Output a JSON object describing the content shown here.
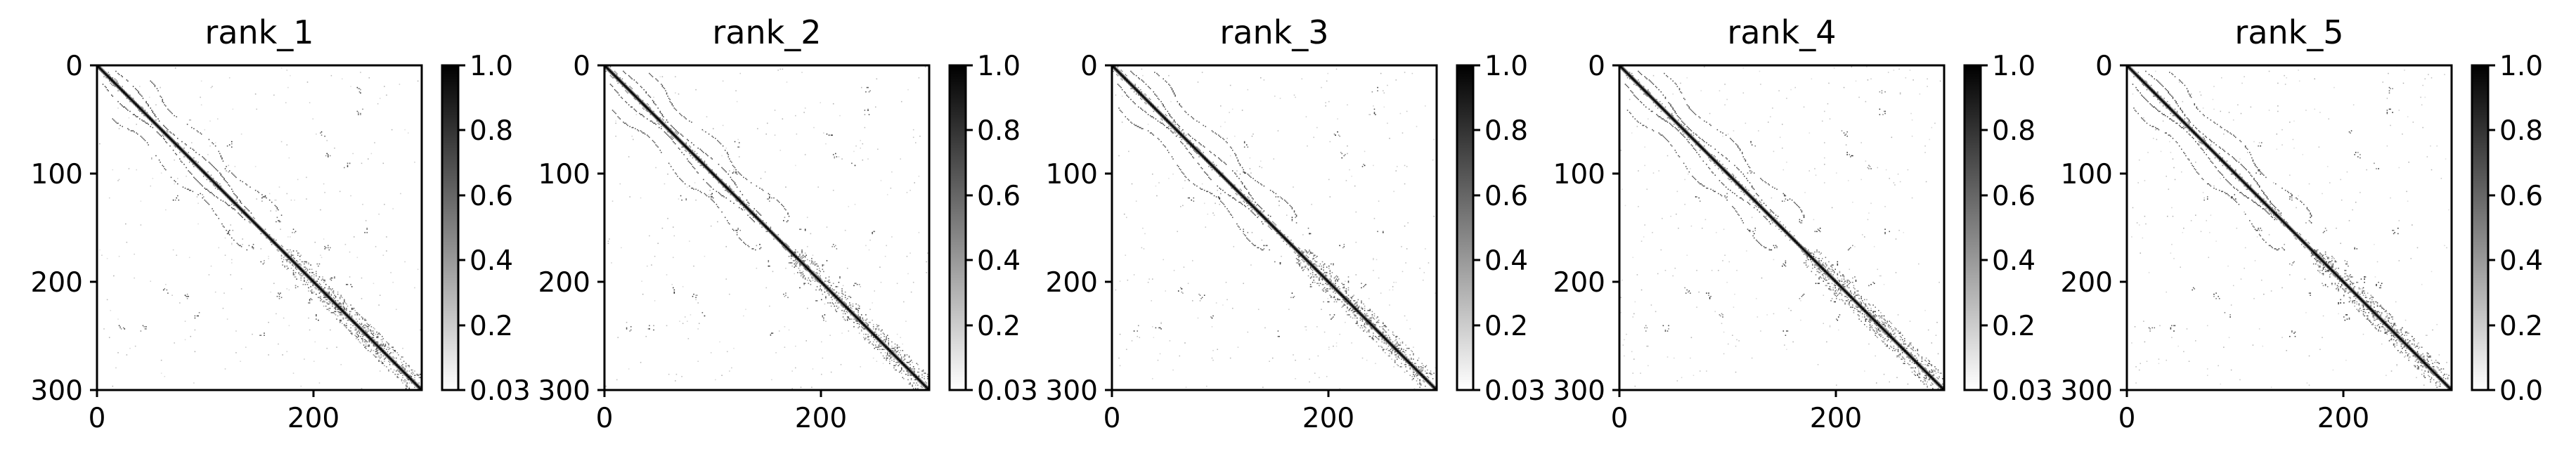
{
  "chart_data": [
    {
      "type": "heatmap",
      "title": "rank_1",
      "xlim": [
        0,
        300
      ],
      "ylim": [
        300,
        0
      ],
      "x_ticks": [
        0,
        200
      ],
      "y_ticks": [
        0,
        100,
        200,
        300
      ],
      "colorbar": {
        "colormap": "Greys",
        "min": 0,
        "max": 1.0,
        "ticks": [
          "0.03",
          "0.2",
          "0.4",
          "0.6",
          "0.8",
          "1.0"
        ]
      },
      "structure": "contact map: strong main diagonal with parallel off-diagonal bands and scattered contacts"
    },
    {
      "type": "heatmap",
      "title": "rank_2",
      "xlim": [
        0,
        300
      ],
      "ylim": [
        300,
        0
      ],
      "x_ticks": [
        0,
        200
      ],
      "y_ticks": [
        0,
        100,
        200,
        300
      ],
      "colorbar": {
        "colormap": "Greys",
        "min": 0,
        "max": 1.0,
        "ticks": [
          "0.03",
          "0.2",
          "0.4",
          "0.6",
          "0.8",
          "1.0"
        ]
      },
      "structure": "contact map: strong main diagonal with parallel off-diagonal bands and scattered contacts"
    },
    {
      "type": "heatmap",
      "title": "rank_3",
      "xlim": [
        0,
        300
      ],
      "ylim": [
        300,
        0
      ],
      "x_ticks": [
        0,
        200
      ],
      "y_ticks": [
        0,
        100,
        200,
        300
      ],
      "colorbar": {
        "colormap": "Greys",
        "min": 0,
        "max": 1.0,
        "ticks": [
          "0.03",
          "0.2",
          "0.4",
          "0.6",
          "0.8",
          "1.0"
        ]
      },
      "structure": "contact map: strong main diagonal with parallel off-diagonal bands and scattered contacts"
    },
    {
      "type": "heatmap",
      "title": "rank_4",
      "xlim": [
        0,
        300
      ],
      "ylim": [
        300,
        0
      ],
      "x_ticks": [
        0,
        200
      ],
      "y_ticks": [
        0,
        100,
        200,
        300
      ],
      "colorbar": {
        "colormap": "Greys",
        "min": 0,
        "max": 1.0,
        "ticks": [
          "0.03",
          "0.2",
          "0.4",
          "0.6",
          "0.8",
          "1.0"
        ]
      },
      "structure": "contact map: strong main diagonal with parallel off-diagonal bands and scattered contacts"
    },
    {
      "type": "heatmap",
      "title": "rank_5",
      "xlim": [
        0,
        300
      ],
      "ylim": [
        300,
        0
      ],
      "x_ticks": [
        0,
        200
      ],
      "y_ticks": [
        0,
        100,
        200,
        300
      ],
      "colorbar": {
        "colormap": "Greys",
        "min": 0,
        "max": 1.0,
        "ticks": [
          "0.0",
          "0.2",
          "0.4",
          "0.6",
          "0.8",
          "1.0"
        ]
      },
      "structure": "contact map: strong main diagonal with parallel off-diagonal bands and scattered contacts"
    }
  ]
}
